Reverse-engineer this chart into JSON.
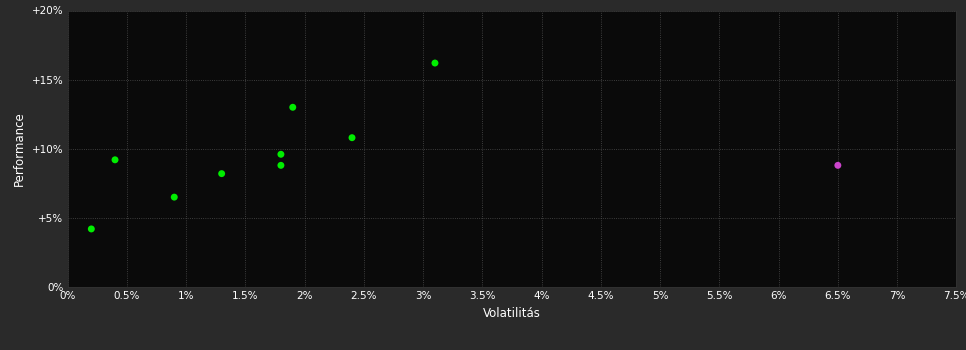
{
  "background_color": "#2a2a2a",
  "plot_bg_color": "#0a0a0a",
  "grid_color": "#555555",
  "xlabel": "Volatilitás",
  "ylabel": "Performance",
  "xlim": [
    0,
    0.075
  ],
  "ylim": [
    0,
    0.2
  ],
  "xticks": [
    0,
    0.005,
    0.01,
    0.015,
    0.02,
    0.025,
    0.03,
    0.035,
    0.04,
    0.045,
    0.05,
    0.055,
    0.06,
    0.065,
    0.07,
    0.075
  ],
  "yticks": [
    0,
    0.05,
    0.1,
    0.15,
    0.2
  ],
  "ytick_labels": [
    "0%",
    "+5%",
    "+10%",
    "+15%",
    "+20%"
  ],
  "xtick_labels": [
    "0%",
    "0.5%",
    "1%",
    "1.5%",
    "2%",
    "2.5%",
    "3%",
    "3.5%",
    "4%",
    "4.5%",
    "5%",
    "5.5%",
    "6%",
    "6.5%",
    "7%",
    "7.5%"
  ],
  "green_points": [
    [
      0.002,
      0.042
    ],
    [
      0.004,
      0.092
    ],
    [
      0.009,
      0.065
    ],
    [
      0.013,
      0.082
    ],
    [
      0.018,
      0.096
    ],
    [
      0.018,
      0.088
    ],
    [
      0.019,
      0.13
    ],
    [
      0.024,
      0.108
    ],
    [
      0.031,
      0.162
    ]
  ],
  "purple_points": [
    [
      0.065,
      0.088
    ]
  ],
  "green_color": "#00ee00",
  "purple_color": "#cc44cc",
  "marker_size": 25,
  "tick_color": "#ffffff",
  "tick_fontsize": 7.5,
  "label_fontsize": 8.5
}
